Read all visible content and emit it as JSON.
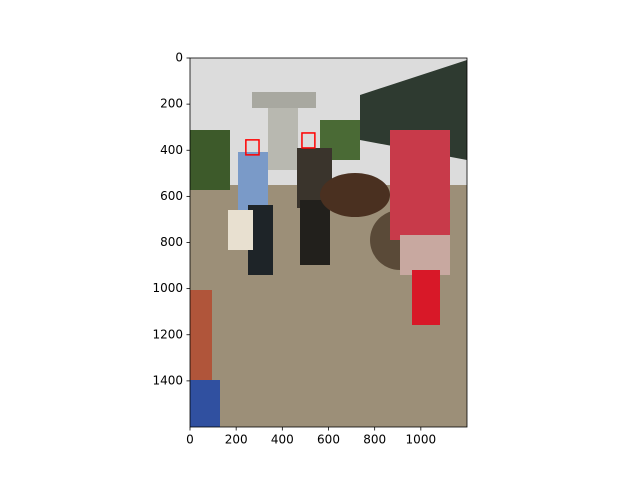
{
  "chart_data": {
    "type": "image",
    "xlim": [
      0,
      1200
    ],
    "ylim": [
      1600,
      0
    ],
    "xticks": [
      0,
      200,
      400,
      600,
      800,
      1000
    ],
    "yticks": [
      0,
      200,
      400,
      600,
      800,
      1000,
      1200,
      1400
    ],
    "box_color": "#ff0000",
    "boxes": [
      {
        "x0": 242,
        "x1": 299,
        "y0": 355,
        "y1": 420
      },
      {
        "x0": 485,
        "x1": 541,
        "y0": 325,
        "y1": 390
      }
    ]
  }
}
